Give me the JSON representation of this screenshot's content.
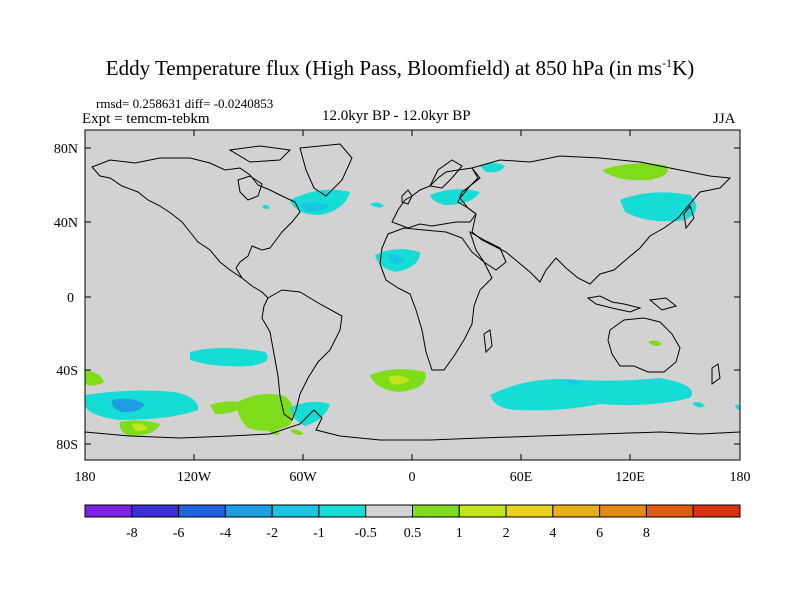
{
  "title": {
    "main": "Eddy Temperature flux (High Pass, Bloomfield) at 850 hPa (in ms",
    "unit_sup": "-1",
    "unit_end": "K)"
  },
  "stats": {
    "text": "rmsd= 0.258631 diff= -0.0240853"
  },
  "expt": {
    "text": "Expt = temcm-tebkm"
  },
  "period": {
    "text": "12.0kyr BP - 12.0kyr BP"
  },
  "season": {
    "text": "JJA"
  },
  "axes": {
    "lat_labels": [
      "80N",
      "40N",
      "0",
      "40S",
      "80S"
    ],
    "lon_labels": [
      "180",
      "120W",
      "60W",
      "0",
      "60E",
      "120E",
      "180"
    ]
  },
  "colorbar": {
    "colors": [
      "#7b22e6",
      "#3a2fd8",
      "#1f63e0",
      "#1c9fe2",
      "#18c8e2",
      "#16dcd6",
      "#d2d2d2",
      "#7edc1a",
      "#c2e41a",
      "#e8d21c",
      "#e8b015",
      "#e58814",
      "#e05a10",
      "#dc3010"
    ],
    "labels": [
      "-8",
      "-6",
      "-4",
      "-2",
      "-1",
      "-0.5",
      "0.5",
      "1",
      "2",
      "4",
      "6",
      "8"
    ]
  },
  "map": {
    "background": "#d2d2d2",
    "coast_color": "#000000"
  }
}
